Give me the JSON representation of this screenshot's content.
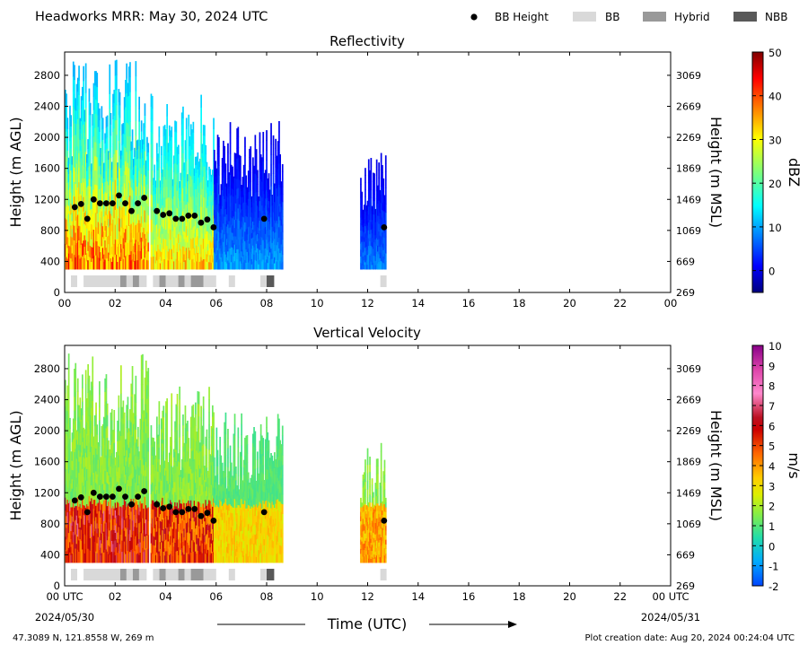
{
  "header": {
    "title": "Headworks MRR:  May 30, 2024 UTC",
    "legend": [
      {
        "label": "BB Height",
        "kind": "dot",
        "color": "#000000"
      },
      {
        "label": "BB",
        "kind": "rect",
        "color": "#d9d9d9"
      },
      {
        "label": "Hybrid",
        "kind": "rect",
        "color": "#999999"
      },
      {
        "label": "NBB",
        "kind": "rect",
        "color": "#595959"
      }
    ]
  },
  "footer": {
    "location": "47.3089 N, 121.8558 W, 269 m",
    "creation": "Plot creation date: Aug 20, 2024 00:24:04 UTC",
    "date_start": "2024/05/30",
    "date_end": "2024/05/31",
    "xlabel": "Time (UTC)"
  },
  "chart_data": [
    {
      "type": "heatmap",
      "title": "Reflectivity",
      "xlabel": "Time (UTC)",
      "ylabel": "Height (m AGL)",
      "ylabel_right": "Height (m MSL)",
      "xlim": [
        0,
        24
      ],
      "ylim": [
        0,
        3100
      ],
      "x_ticks": [
        "00",
        "02",
        "04",
        "06",
        "08",
        "10",
        "12",
        "14",
        "16",
        "18",
        "20",
        "22",
        "00"
      ],
      "y_ticks": [
        0,
        400,
        800,
        1200,
        1600,
        2000,
        2400,
        2800
      ],
      "y_ticks_right": [
        269,
        669,
        1069,
        1469,
        1869,
        2269,
        2669,
        3069
      ],
      "colorbar": {
        "label": "dBZ",
        "min": -5,
        "max": 50,
        "ticks": [
          0,
          10,
          20,
          30,
          40,
          50
        ],
        "colormap": "jet"
      },
      "bb_height": [
        {
          "x": 0.4,
          "y": 1100
        },
        {
          "x": 0.65,
          "y": 1140
        },
        {
          "x": 0.9,
          "y": 950
        },
        {
          "x": 1.15,
          "y": 1200
        },
        {
          "x": 1.4,
          "y": 1150
        },
        {
          "x": 1.65,
          "y": 1150
        },
        {
          "x": 1.9,
          "y": 1150
        },
        {
          "x": 2.15,
          "y": 1250
        },
        {
          "x": 2.4,
          "y": 1150
        },
        {
          "x": 2.65,
          "y": 1050
        },
        {
          "x": 2.9,
          "y": 1150
        },
        {
          "x": 3.15,
          "y": 1220
        },
        {
          "x": 3.65,
          "y": 1050
        },
        {
          "x": 3.9,
          "y": 1000
        },
        {
          "x": 4.15,
          "y": 1020
        },
        {
          "x": 4.4,
          "y": 950
        },
        {
          "x": 4.65,
          "y": 950
        },
        {
          "x": 4.9,
          "y": 990
        },
        {
          "x": 5.15,
          "y": 990
        },
        {
          "x": 5.4,
          "y": 900
        },
        {
          "x": 5.65,
          "y": 940
        },
        {
          "x": 5.9,
          "y": 840
        },
        {
          "x": 7.9,
          "y": 950
        },
        {
          "x": 12.65,
          "y": 840
        }
      ],
      "bb_type_segments": [
        {
          "start": 0.25,
          "end": 0.5,
          "type": "BB"
        },
        {
          "start": 0.75,
          "end": 2.2,
          "type": "BB"
        },
        {
          "start": 2.2,
          "end": 2.45,
          "type": "Hybrid"
        },
        {
          "start": 2.45,
          "end": 2.7,
          "type": "BB"
        },
        {
          "start": 2.7,
          "end": 2.95,
          "type": "Hybrid"
        },
        {
          "start": 2.95,
          "end": 3.25,
          "type": "BB"
        },
        {
          "start": 3.5,
          "end": 3.75,
          "type": "BB"
        },
        {
          "start": 3.75,
          "end": 4.0,
          "type": "Hybrid"
        },
        {
          "start": 4.0,
          "end": 4.5,
          "type": "BB"
        },
        {
          "start": 4.5,
          "end": 4.75,
          "type": "Hybrid"
        },
        {
          "start": 4.75,
          "end": 5.0,
          "type": "BB"
        },
        {
          "start": 5.0,
          "end": 5.5,
          "type": "Hybrid"
        },
        {
          "start": 5.5,
          "end": 6.0,
          "type": "BB"
        },
        {
          "start": 6.5,
          "end": 6.75,
          "type": "BB"
        },
        {
          "start": 7.75,
          "end": 8.0,
          "type": "BB"
        },
        {
          "start": 8.0,
          "end": 8.3,
          "type": "NBB"
        },
        {
          "start": 12.5,
          "end": 12.75,
          "type": "BB"
        }
      ],
      "echo_regions": [
        {
          "start": 0.0,
          "end": 3.3,
          "top": 3000,
          "base": 300,
          "dbz_low": 10,
          "dbz_high": 42
        },
        {
          "start": 3.4,
          "end": 5.9,
          "top": 2600,
          "base": 300,
          "dbz_low": 12,
          "dbz_high": 35
        },
        {
          "start": 5.9,
          "end": 8.6,
          "top": 2250,
          "base": 300,
          "dbz_low": 0,
          "dbz_high": 12
        },
        {
          "start": 11.7,
          "end": 12.7,
          "top": 1850,
          "base": 300,
          "dbz_low": 0,
          "dbz_high": 10
        }
      ]
    },
    {
      "type": "heatmap",
      "title": "Vertical Velocity",
      "xlabel": "Time (UTC)",
      "ylabel": "Height (m AGL)",
      "ylabel_right": "Height (m MSL)",
      "xlim": [
        0,
        24
      ],
      "ylim": [
        0,
        3100
      ],
      "x_ticks": [
        "00 UTC",
        "02",
        "04",
        "06",
        "08",
        "10",
        "12",
        "14",
        "16",
        "18",
        "20",
        "22",
        "00 UTC"
      ],
      "y_ticks": [
        0,
        400,
        800,
        1200,
        1600,
        2000,
        2400,
        2800
      ],
      "y_ticks_right": [
        269,
        669,
        1069,
        1469,
        1869,
        2269,
        2669,
        3069
      ],
      "colorbar": {
        "label": "m/s",
        "min": -2,
        "max": 10,
        "ticks": [
          -2,
          -1,
          0,
          1,
          2,
          3,
          4,
          5,
          6,
          7,
          8,
          9,
          10
        ]
      },
      "bb_height": [
        {
          "x": 0.4,
          "y": 1100
        },
        {
          "x": 0.65,
          "y": 1140
        },
        {
          "x": 0.9,
          "y": 950
        },
        {
          "x": 1.15,
          "y": 1200
        },
        {
          "x": 1.4,
          "y": 1150
        },
        {
          "x": 1.65,
          "y": 1150
        },
        {
          "x": 1.9,
          "y": 1150
        },
        {
          "x": 2.15,
          "y": 1250
        },
        {
          "x": 2.4,
          "y": 1150
        },
        {
          "x": 2.65,
          "y": 1050
        },
        {
          "x": 2.9,
          "y": 1150
        },
        {
          "x": 3.15,
          "y": 1220
        },
        {
          "x": 3.65,
          "y": 1050
        },
        {
          "x": 3.9,
          "y": 1000
        },
        {
          "x": 4.15,
          "y": 1020
        },
        {
          "x": 4.4,
          "y": 950
        },
        {
          "x": 4.65,
          "y": 950
        },
        {
          "x": 4.9,
          "y": 990
        },
        {
          "x": 5.15,
          "y": 990
        },
        {
          "x": 5.4,
          "y": 900
        },
        {
          "x": 5.65,
          "y": 940
        },
        {
          "x": 5.9,
          "y": 840
        },
        {
          "x": 7.9,
          "y": 950
        },
        {
          "x": 12.65,
          "y": 840
        }
      ],
      "bb_type_segments": [
        {
          "start": 0.25,
          "end": 0.5,
          "type": "BB"
        },
        {
          "start": 0.75,
          "end": 2.2,
          "type": "BB"
        },
        {
          "start": 2.2,
          "end": 2.45,
          "type": "Hybrid"
        },
        {
          "start": 2.45,
          "end": 2.7,
          "type": "BB"
        },
        {
          "start": 2.7,
          "end": 2.95,
          "type": "Hybrid"
        },
        {
          "start": 2.95,
          "end": 3.25,
          "type": "BB"
        },
        {
          "start": 3.5,
          "end": 3.75,
          "type": "BB"
        },
        {
          "start": 3.75,
          "end": 4.0,
          "type": "Hybrid"
        },
        {
          "start": 4.0,
          "end": 4.5,
          "type": "BB"
        },
        {
          "start": 4.5,
          "end": 4.75,
          "type": "Hybrid"
        },
        {
          "start": 4.75,
          "end": 5.0,
          "type": "BB"
        },
        {
          "start": 5.0,
          "end": 5.5,
          "type": "Hybrid"
        },
        {
          "start": 5.5,
          "end": 6.0,
          "type": "BB"
        },
        {
          "start": 6.5,
          "end": 6.75,
          "type": "BB"
        },
        {
          "start": 7.75,
          "end": 8.0,
          "type": "BB"
        },
        {
          "start": 8.0,
          "end": 8.3,
          "type": "NBB"
        },
        {
          "start": 12.5,
          "end": 12.75,
          "type": "BB"
        }
      ],
      "echo_regions": [
        {
          "start": 0.0,
          "end": 3.3,
          "top": 3000,
          "base": 300,
          "w_above": 1.0,
          "w_below": 6.5
        },
        {
          "start": 3.4,
          "end": 5.9,
          "top": 2600,
          "base": 300,
          "w_above": 1.0,
          "w_below": 6.0
        },
        {
          "start": 5.9,
          "end": 8.6,
          "top": 2250,
          "base": 300,
          "w_above": 0.5,
          "w_below": 3.0
        },
        {
          "start": 11.7,
          "end": 12.7,
          "top": 1850,
          "base": 300,
          "w_above": 1.0,
          "w_below": 4.0
        }
      ]
    }
  ]
}
